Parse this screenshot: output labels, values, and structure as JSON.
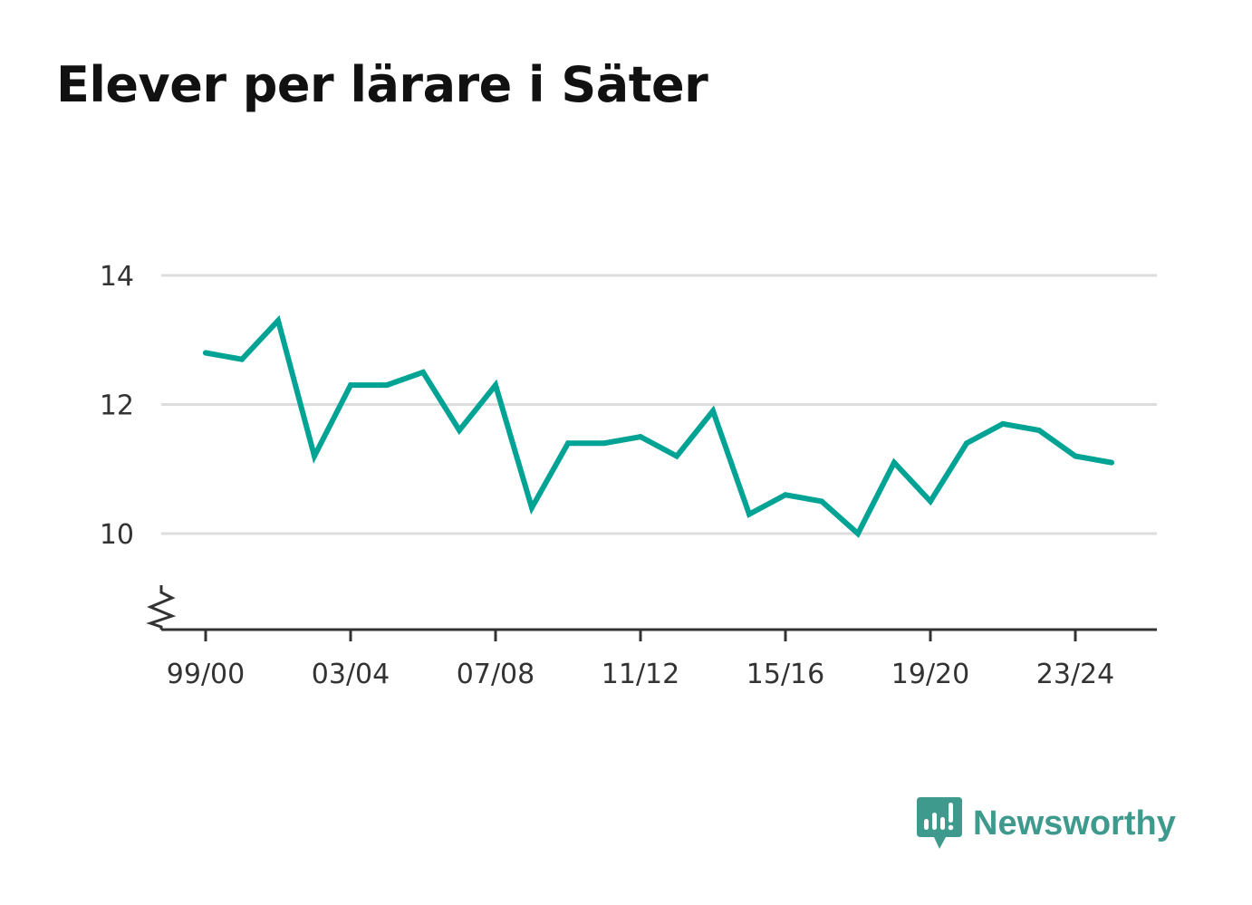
{
  "title": "Elever per lärare i Säter",
  "brand": {
    "name": "Newsworthy",
    "icon": "newsworthy-logo-icon",
    "color": "#3f9a8e"
  },
  "colors": {
    "line": "#00a394",
    "grid": "#dddddd",
    "axis": "#333333"
  },
  "chart_data": {
    "type": "line",
    "title": "Elever per lärare i Säter",
    "xlabel": "",
    "ylabel": "",
    "ylim": [
      9,
      14
    ],
    "axis_break": true,
    "grid": true,
    "x": [
      "99/00",
      "00/01",
      "01/02",
      "02/03",
      "03/04",
      "04/05",
      "05/06",
      "06/07",
      "07/08",
      "08/09",
      "09/10",
      "10/11",
      "11/12",
      "12/13",
      "13/14",
      "14/15",
      "15/16",
      "16/17",
      "17/18",
      "18/19",
      "19/20",
      "20/21",
      "21/22",
      "22/23",
      "23/24",
      "24/25"
    ],
    "xticks": [
      "99/00",
      "03/04",
      "07/08",
      "11/12",
      "15/16",
      "19/20",
      "23/24"
    ],
    "yticks": [
      10,
      12,
      14
    ],
    "series": [
      {
        "values": [
          12.8,
          12.7,
          13.3,
          11.2,
          12.3,
          12.3,
          12.5,
          11.6,
          12.3,
          10.4,
          11.4,
          11.4,
          11.5,
          11.2,
          11.9,
          10.3,
          10.6,
          10.5,
          10.0,
          11.1,
          10.5,
          11.4,
          11.7,
          11.6,
          11.2,
          11.1
        ]
      }
    ]
  }
}
